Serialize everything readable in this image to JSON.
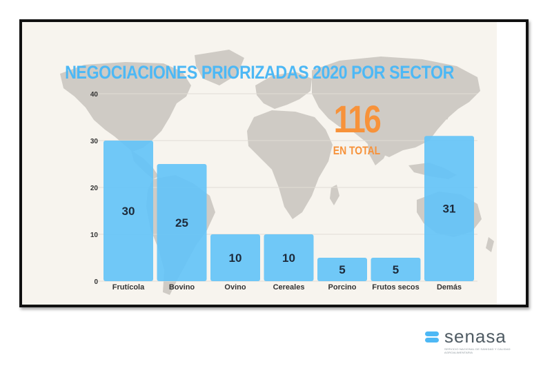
{
  "colors": {
    "bar": "#64c3f7",
    "title": "#4db8f5",
    "accent": "#f7923a",
    "map": "#cfcbc5",
    "axis_text": "#333333",
    "logo_text": "#4f5b63",
    "logo_mark": "#4db8f5"
  },
  "total": {
    "number": "116",
    "label": "EN TOTAL"
  },
  "chart_data": {
    "type": "bar",
    "title": "NEGOCIACIONES PRIORIZADAS 2020 POR SECTOR",
    "xlabel": "",
    "ylabel": "",
    "categories": [
      "Frutícola",
      "Bovino",
      "Ovino",
      "Cereales",
      "Porcino",
      "Frutos secos",
      "Demás"
    ],
    "values": [
      30,
      25,
      10,
      10,
      5,
      5,
      31
    ],
    "data_labels": [
      "30",
      "25",
      "10",
      "10",
      "5",
      "5",
      "31"
    ],
    "yticks": [
      "0",
      "10",
      "20",
      "30",
      "40"
    ],
    "ylim": [
      0,
      40
    ],
    "grid": true,
    "legend": "none",
    "background": "world map"
  },
  "logo": {
    "icon": "senasa-logo-mark",
    "word": "senasa",
    "subtitle": "SERVICIO NACIONAL DE SANIDAD Y CALIDAD AGROALIMENTARIA"
  }
}
